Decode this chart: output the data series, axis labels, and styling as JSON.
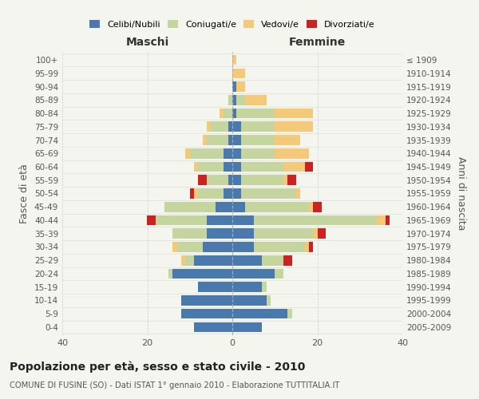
{
  "age_groups": [
    "0-4",
    "5-9",
    "10-14",
    "15-19",
    "20-24",
    "25-29",
    "30-34",
    "35-39",
    "40-44",
    "45-49",
    "50-54",
    "55-59",
    "60-64",
    "65-69",
    "70-74",
    "75-79",
    "80-84",
    "85-89",
    "90-94",
    "95-99",
    "100+"
  ],
  "birth_years": [
    "2005-2009",
    "2000-2004",
    "1995-1999",
    "1990-1994",
    "1985-1989",
    "1980-1984",
    "1975-1979",
    "1970-1974",
    "1965-1969",
    "1960-1964",
    "1955-1959",
    "1950-1954",
    "1945-1949",
    "1940-1944",
    "1935-1939",
    "1930-1934",
    "1925-1929",
    "1920-1924",
    "1915-1919",
    "1910-1914",
    "≤ 1909"
  ],
  "colors": {
    "celibi": "#4a7aad",
    "coniugati": "#c5d5a0",
    "vedovi": "#f5c97a",
    "divorziati": "#cc2222"
  },
  "maschi": {
    "celibi": [
      9,
      12,
      12,
      8,
      14,
      9,
      7,
      6,
      6,
      4,
      2,
      1,
      2,
      2,
      1,
      1,
      0,
      0,
      0,
      0,
      0
    ],
    "coniugati": [
      0,
      0,
      0,
      0,
      1,
      2,
      6,
      8,
      12,
      12,
      6,
      5,
      6,
      8,
      5,
      4,
      2,
      1,
      0,
      0,
      0
    ],
    "vedovi": [
      0,
      0,
      0,
      0,
      0,
      1,
      1,
      0,
      0,
      0,
      1,
      0,
      1,
      1,
      1,
      1,
      1,
      0,
      0,
      0,
      0
    ],
    "divorziati": [
      0,
      0,
      0,
      0,
      0,
      0,
      0,
      0,
      2,
      0,
      1,
      2,
      0,
      0,
      0,
      0,
      0,
      0,
      0,
      0,
      0
    ]
  },
  "femmine": {
    "celibi": [
      7,
      13,
      8,
      7,
      10,
      7,
      5,
      5,
      5,
      3,
      2,
      2,
      2,
      2,
      2,
      2,
      1,
      1,
      1,
      0,
      0
    ],
    "coniugati": [
      0,
      1,
      1,
      1,
      2,
      5,
      12,
      14,
      29,
      15,
      13,
      10,
      10,
      8,
      8,
      8,
      9,
      2,
      0,
      0,
      0
    ],
    "vedovi": [
      0,
      0,
      0,
      0,
      0,
      0,
      1,
      1,
      2,
      1,
      1,
      1,
      5,
      8,
      6,
      9,
      9,
      5,
      2,
      3,
      1
    ],
    "divorziati": [
      0,
      0,
      0,
      0,
      0,
      2,
      1,
      2,
      1,
      2,
      0,
      2,
      2,
      0,
      0,
      0,
      0,
      0,
      0,
      0,
      0
    ]
  },
  "xlim": 40,
  "title": "Popolazione per età, sesso e stato civile - 2010",
  "subtitle": "COMUNE DI FUSINE (SO) - Dati ISTAT 1° gennaio 2010 - Elaborazione TUTTITALIA.IT",
  "ylabel_left": "Fasce di età",
  "ylabel_right": "Anni di nascita",
  "xlabel_left": "Maschi",
  "xlabel_right": "Femmine",
  "bg_color": "#f5f5f0"
}
